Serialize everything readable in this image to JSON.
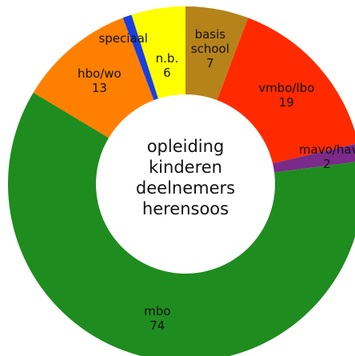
{
  "chart_data": {
    "type": "donut",
    "title": "opleiding kinderen deelnemers herensoos",
    "categories": [
      "basis school",
      "vmbo/lbo",
      "mavo/havo",
      "mbo",
      "hbo/wo",
      "speciaal",
      "n.b."
    ],
    "values": [
      7,
      19,
      2,
      74,
      13,
      1,
      6
    ],
    "colors": [
      "#b5831a",
      "#ff2a00",
      "#7b2a8a",
      "#1f8c1f",
      "#ff8000",
      "#1a3ee0",
      "#ffff00"
    ]
  }
}
